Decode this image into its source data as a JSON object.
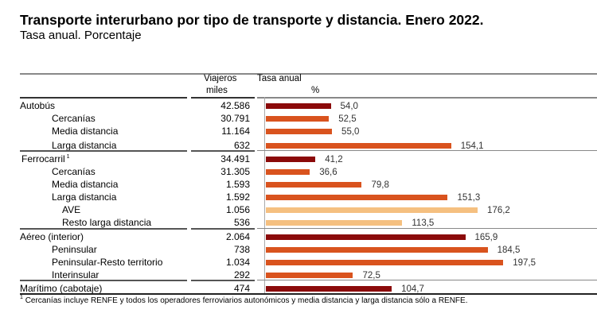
{
  "header": {
    "title": "Transporte interurbano por tipo de transporte y distancia. Enero 2022.",
    "subtitle": "Tasa anual. Porcentaje"
  },
  "table_headers": {
    "viajeros_line1": "Viajeros",
    "viajeros_line2": "miles",
    "tasa_line1": "Tasa anual",
    "tasa_line2": "%"
  },
  "footnote": {
    "marker": "1",
    "text": "Cercanías incluye RENFE y todos los operadores ferroviarios autonómicos y media distancia y larga distancia sólo a RENFE."
  },
  "colors": {
    "total": "#8b0a0a",
    "sub": "#d9531e",
    "subsub": "#f5c080"
  },
  "chart_data": {
    "type": "bar",
    "orientation": "horizontal",
    "title": "Transporte interurbano por tipo de transporte y distancia. Enero 2022.",
    "subtitle": "Tasa anual. Porcentaje",
    "xlabel": "%",
    "ylabel": "",
    "xlim": [
      0,
      200
    ],
    "grid": false,
    "legend": "none",
    "categories": [
      "Autobús",
      "Cercanías",
      "Media distancia",
      "Larga distancia",
      "Ferrocarril",
      "Cercanías",
      "Media distancia",
      "Larga distancia",
      "AVE",
      "Resto larga distancia",
      "Aéreo (interior)",
      "Peninsular",
      "Peninsular-Resto territorio",
      "Interinsular",
      "Marítimo (cabotaje)"
    ],
    "rows": [
      {
        "label": "Autobús",
        "level": 0,
        "viajeros": "42.586",
        "value": 54.0,
        "value_label": "54,0"
      },
      {
        "label": "Cercanías",
        "level": 1,
        "viajeros": "30.791",
        "value": 52.5,
        "value_label": "52,5"
      },
      {
        "label": "Media distancia",
        "level": 1,
        "viajeros": "11.164",
        "value": 55.0,
        "value_label": "55,0"
      },
      {
        "label": "Larga distancia",
        "level": 1,
        "viajeros": "632",
        "value": 154.1,
        "value_label": "154,1"
      },
      {
        "label": "Ferrocarril",
        "sup": "1",
        "level": 0,
        "viajeros": "34.491",
        "value": 41.2,
        "value_label": "41,2"
      },
      {
        "label": "Cercanías",
        "level": 1,
        "viajeros": "31.305",
        "value": 36.6,
        "value_label": "36,6"
      },
      {
        "label": "Media distancia",
        "level": 1,
        "viajeros": "1.593",
        "value": 79.8,
        "value_label": "79,8"
      },
      {
        "label": "Larga distancia",
        "level": 1,
        "viajeros": "1.592",
        "value": 151.3,
        "value_label": "151,3"
      },
      {
        "label": "AVE",
        "level": 2,
        "viajeros": "1.056",
        "value": 176.2,
        "value_label": "176,2"
      },
      {
        "label": "Resto larga distancia",
        "level": 2,
        "viajeros": "536",
        "value": 113.5,
        "value_label": "113,5"
      },
      {
        "label": "Aéreo (interior)",
        "level": 0,
        "viajeros": "2.064",
        "value": 165.9,
        "value_label": "165,9"
      },
      {
        "label": "Peninsular",
        "level": 1,
        "viajeros": "738",
        "value": 184.5,
        "value_label": "184,5"
      },
      {
        "label": "Peninsular-Resto territorio",
        "level": 1,
        "viajeros": "1.034",
        "value": 197.5,
        "value_label": "197,5"
      },
      {
        "label": "Interinsular",
        "level": 1,
        "viajeros": "292",
        "value": 72.5,
        "value_label": "72,5"
      },
      {
        "label": "Marítimo (cabotaje)",
        "level": 0,
        "viajeros": "474",
        "value": 104.7,
        "value_label": "104,7"
      }
    ]
  }
}
